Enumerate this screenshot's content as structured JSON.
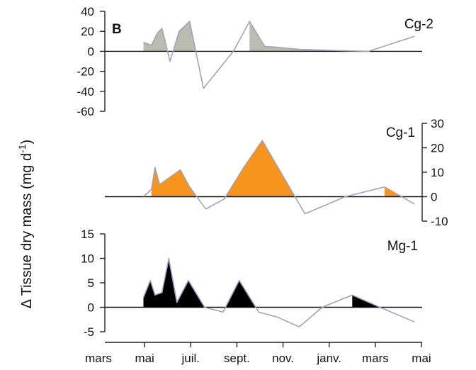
{
  "figure_letter": "B",
  "ylabel": "Δ Tissue dry mass (mg d-1)",
  "ylabel_parts": {
    "main": "Δ Tissue dry mass (mg d",
    "sup": "-1",
    "end": ")"
  },
  "x_axis": {
    "ticks": [
      {
        "label": "mars",
        "month_index": 0
      },
      {
        "label": "mai",
        "month_index": 2
      },
      {
        "label": "juil.",
        "month_index": 4
      },
      {
        "label": "sept.",
        "month_index": 6
      },
      {
        "label": "nov.",
        "month_index": 8
      },
      {
        "label": "janv.",
        "month_index": 10
      },
      {
        "label": "mars",
        "month_index": 12
      },
      {
        "label": "mai",
        "month_index": 14
      }
    ]
  },
  "chart_data": [
    {
      "type": "area",
      "name": "Cg-2",
      "fill_color": "#b9bcae",
      "line_color": "#9ea3c4",
      "y_axis_side": "left",
      "ylim": [
        -60,
        40
      ],
      "yticks": [
        -60,
        -40,
        -20,
        0,
        20,
        40
      ],
      "x_month_index": [
        1.95,
        2.3,
        2.55,
        2.75,
        3.1,
        3.5,
        3.95,
        4.55,
        5.85,
        6.55,
        7.2,
        8.7,
        10.0,
        11.7,
        13.7
      ],
      "values": [
        9,
        6,
        18,
        23,
        -10,
        20,
        30,
        -37,
        0,
        30,
        5,
        2,
        1,
        0,
        15
      ]
    },
    {
      "type": "area",
      "name": "Cg-1",
      "fill_color": "#f7941d",
      "line_color": "#9ea3c4",
      "y_axis_side": "right",
      "ylim": [
        -10,
        30
      ],
      "yticks": [
        -10,
        0,
        10,
        20,
        30
      ],
      "x_month_index": [
        1.95,
        2.3,
        2.45,
        2.65,
        3.55,
        3.95,
        4.65,
        5.45,
        6.3,
        7.1,
        8.95,
        10.7,
        12.4,
        13.7
      ],
      "values": [
        0,
        3,
        12,
        5,
        11,
        4,
        -5,
        -1,
        12,
        23,
        -7,
        0,
        4,
        -3
      ]
    },
    {
      "type": "area",
      "name": "Mg-1",
      "fill_color": "#000000",
      "line_color": "#9ea3c4",
      "y_axis_side": "left",
      "ylim": [
        -5,
        15
      ],
      "yticks": [
        -5,
        0,
        5,
        10,
        15
      ],
      "x_month_index": [
        1.95,
        2.25,
        2.45,
        2.75,
        3.05,
        3.4,
        3.9,
        4.6,
        5.4,
        6.1,
        6.95,
        7.75,
        8.7,
        9.7,
        11.0,
        12.2,
        13.7
      ],
      "values": [
        2,
        5.5,
        2.5,
        3,
        10,
        1,
        5.5,
        0,
        -1,
        5.5,
        -1,
        -2,
        -4,
        0,
        2.5,
        0,
        -3
      ]
    }
  ]
}
